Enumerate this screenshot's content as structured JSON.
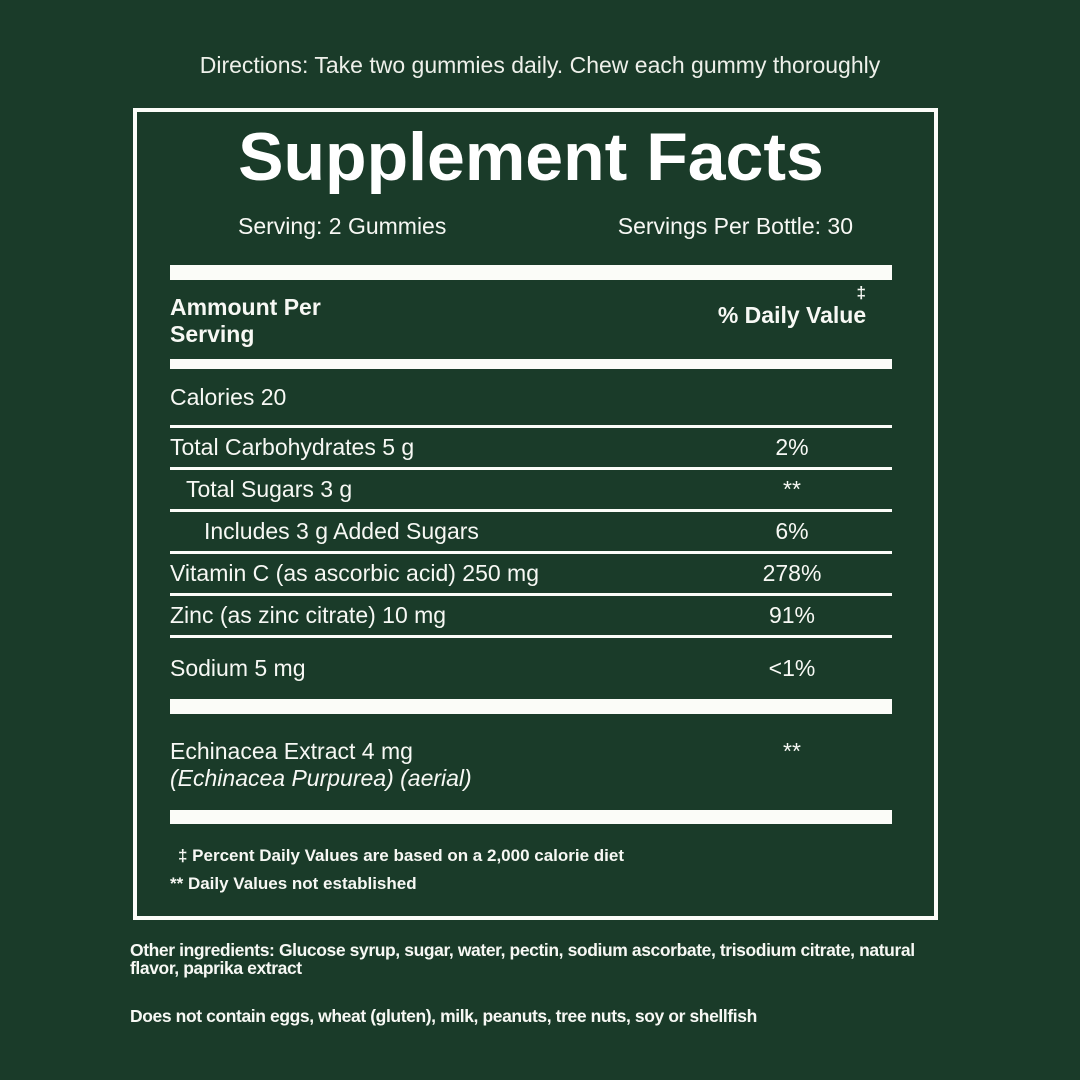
{
  "colors": {
    "background": "#1a3b29",
    "foreground": "#fbfcf8"
  },
  "directions": "Directions: Take two gummies daily. Chew each gummy thoroughly",
  "panel": {
    "title": "Supplement Facts",
    "serving": "Serving: 2 Gummies",
    "servings_per_bottle": "Servings Per Bottle: 30",
    "header": {
      "amount_line1": "Ammount Per",
      "amount_line2": "Serving",
      "dagger": "‡",
      "daily_value_label": "% Daily Value"
    },
    "rows": [
      {
        "label": "Calories 20",
        "value": ""
      },
      {
        "label": "Total Carbohydrates 5 g",
        "value": "2%"
      },
      {
        "label": "Total Sugars 3 g",
        "value": "**"
      },
      {
        "label": "Includes 3 g Added Sugars",
        "value": "6%"
      },
      {
        "label": "Vitamin C (as ascorbic acid) 250 mg",
        "value": "278%"
      },
      {
        "label": "Zinc (as zinc citrate) 10 mg",
        "value": "91%"
      },
      {
        "label": "Sodium 5 mg",
        "value": "<1%"
      }
    ],
    "botanical": {
      "label": "Echinacea Extract 4 mg",
      "sublabel": "(Echinacea Purpurea) (aerial)",
      "value": "**"
    },
    "footnotes": [
      "‡ Percent Daily Values are based on a 2,000 calorie diet",
      "** Daily Values not established"
    ]
  },
  "footer": {
    "other_ingredients": "Other ingredients: Glucose syrup, sugar, water, pectin, sodium ascorbate, trisodium citrate, natural flavor, paprika extract",
    "allergen": "Does not contain eggs, wheat (gluten), milk, peanuts, tree nuts, soy or shellfish"
  }
}
